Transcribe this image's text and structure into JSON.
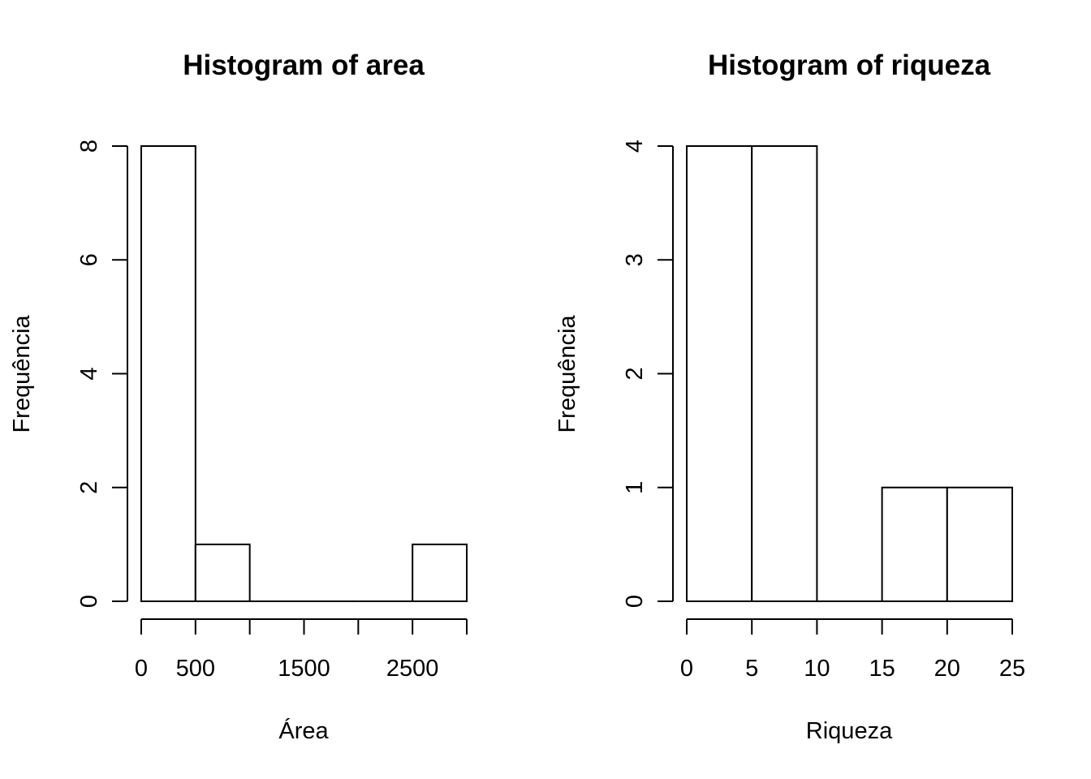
{
  "chart_data": [
    {
      "type": "bar",
      "title": "Histogram of area",
      "xlabel": "Área",
      "ylabel": "Frequência",
      "bin_edges": [
        0,
        500,
        1000,
        1500,
        2000,
        2500,
        3000
      ],
      "counts": [
        8,
        1,
        0,
        0,
        0,
        1
      ],
      "xlim": [
        0,
        3000
      ],
      "ylim": [
        0,
        8
      ],
      "x_ticks": [
        0,
        500,
        1000,
        1500,
        2000,
        2500,
        3000
      ],
      "x_tick_labels": [
        "0",
        "500",
        "",
        "1500",
        "",
        "2500",
        ""
      ],
      "y_ticks": [
        0,
        2,
        4,
        6,
        8
      ],
      "y_tick_labels": [
        "0",
        "2",
        "4",
        "6",
        "8"
      ],
      "grid": false,
      "colors": {
        "bar_fill": "#ffffff",
        "bar_stroke": "#000000"
      }
    },
    {
      "type": "bar",
      "title": "Histogram of riqueza",
      "xlabel": "Riqueza",
      "ylabel": "Frequência",
      "bin_edges": [
        0,
        5,
        10,
        15,
        20,
        25
      ],
      "counts": [
        4,
        4,
        0,
        1,
        1
      ],
      "xlim": [
        0,
        25
      ],
      "ylim": [
        0,
        4
      ],
      "x_ticks": [
        0,
        5,
        10,
        15,
        20,
        25
      ],
      "x_tick_labels": [
        "0",
        "5",
        "10",
        "15",
        "20",
        "25"
      ],
      "y_ticks": [
        0,
        1,
        2,
        3,
        4
      ],
      "y_tick_labels": [
        "0",
        "1",
        "2",
        "3",
        "4"
      ],
      "grid": false,
      "colors": {
        "bar_fill": "#ffffff",
        "bar_stroke": "#000000"
      }
    }
  ]
}
